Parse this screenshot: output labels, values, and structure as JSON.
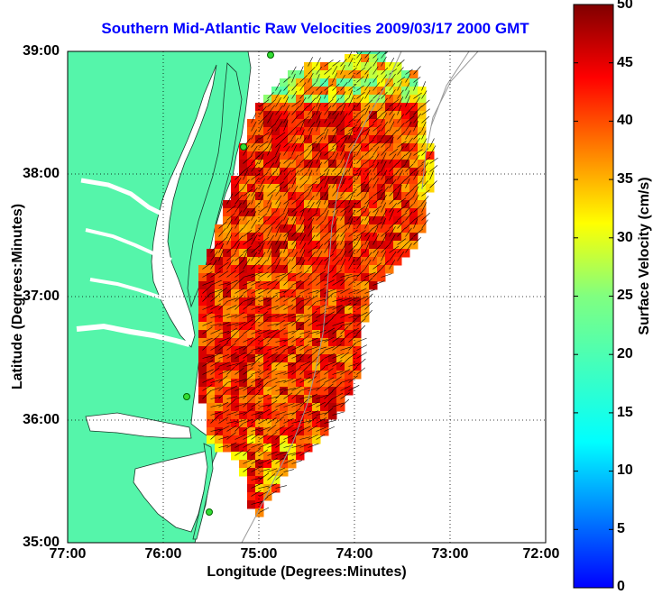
{
  "title": "Southern Mid-Atlantic Raw Velocities 2009/03/17 2000 GMT",
  "x_axis": {
    "label": "Longitude (Degrees:Minutes)",
    "ticks": [
      "77:00",
      "76:00",
      "75:00",
      "74:00",
      "73:00",
      "72:00"
    ]
  },
  "y_axis": {
    "label": "Latitude (Degrees:Minutes)",
    "ticks": [
      "39:00",
      "38:00",
      "37:00",
      "36:00",
      "35:00"
    ]
  },
  "colorbar": {
    "label": "Surface Velocity (cm/s)",
    "ticks": [
      "50",
      "45",
      "40",
      "35",
      "30",
      "25",
      "20",
      "15",
      "10",
      "5",
      "0"
    ],
    "min": 0,
    "max": 50,
    "colormap": "jet"
  },
  "colors": {
    "land": "#55f5aa",
    "title": "#0000ff",
    "station": "#33dd33"
  },
  "map": {
    "lon_range": [
      "77:00",
      "72:00"
    ],
    "lat_range": [
      "35:00",
      "39:00"
    ],
    "grid": "dotted"
  }
}
